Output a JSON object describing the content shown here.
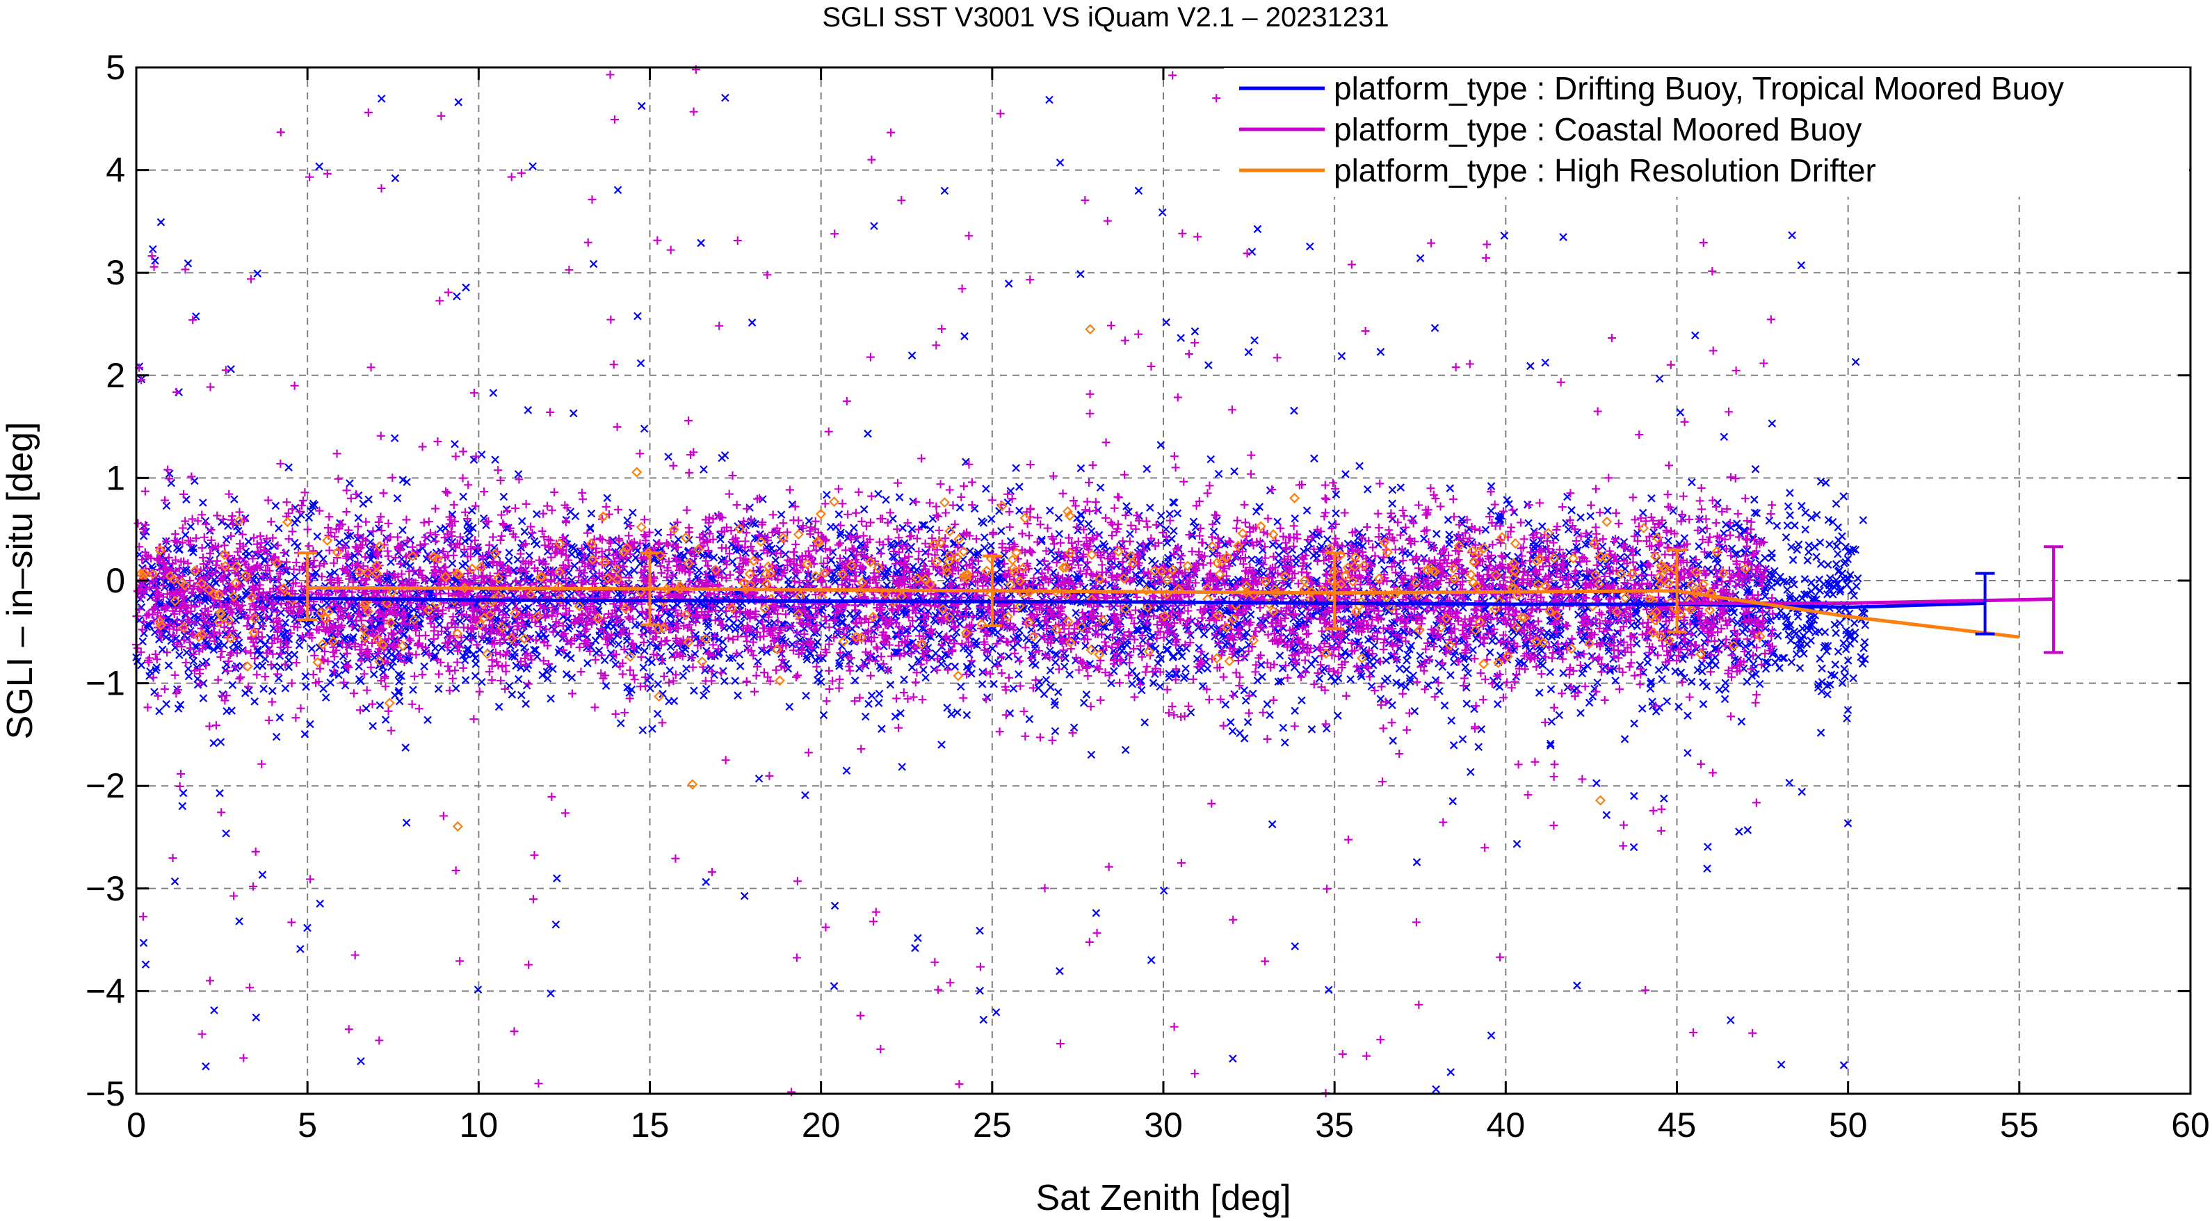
{
  "chart_data": {
    "type": "scatter",
    "title": "SGLI SST V3001 VS iQuam V2.1  – 20231231",
    "xlabel": "Sat Zenith [deg]",
    "ylabel": "SGLI – in–situ [deg]",
    "xlim": [
      0,
      60
    ],
    "ylim": [
      -5,
      5
    ],
    "x_ticks": [
      0,
      5,
      10,
      15,
      20,
      25,
      30,
      35,
      40,
      45,
      50,
      55,
      60
    ],
    "y_ticks": [
      -5,
      -4,
      -3,
      -2,
      -1,
      0,
      1,
      2,
      3,
      4,
      5
    ],
    "x_tick_labels": [
      "0",
      "5",
      "10",
      "15",
      "20",
      "25",
      "30",
      "35",
      "40",
      "45",
      "50",
      "55",
      "60"
    ],
    "y_tick_labels": [
      "−5",
      "−4",
      "−3",
      "−2",
      "−1",
      "0",
      "1",
      "2",
      "3",
      "4",
      "5"
    ],
    "grid": true,
    "legend_position": "top-right",
    "scatter_point_x_range": [
      0,
      50.5
    ],
    "series": [
      {
        "name": "platform_type : Drifting Buoy, Tropical Moored Buoy",
        "color": "#0000ff",
        "marker": "x",
        "bias_x": [
          4,
          10,
          20,
          30,
          40,
          45,
          50,
          54
        ],
        "bias_y": [
          -0.17,
          -0.19,
          -0.2,
          -0.21,
          -0.23,
          -0.23,
          -0.26,
          -0.22
        ],
        "errorbar": {
          "x": 54,
          "y": -0.22,
          "low": -0.52,
          "high": 0.07
        }
      },
      {
        "name": "platform_type : Coastal Moored Buoy",
        "color": "#cc00cc",
        "marker": "+",
        "bias_x": [
          45,
          50,
          56
        ],
        "bias_y": [
          -0.22,
          -0.22,
          -0.18
        ],
        "errorbar": {
          "x": 56,
          "y": -0.18,
          "low": -0.7,
          "high": 0.33
        }
      },
      {
        "name": "platform_type : High Resolution Drifter",
        "color": "#ff7f0e",
        "marker": "diamond",
        "bias_x": [
          5,
          15,
          25,
          35,
          45,
          50,
          55
        ],
        "bias_y": [
          -0.07,
          -0.08,
          -0.1,
          -0.12,
          -0.1,
          -0.35,
          -0.55
        ],
        "errorbars": [
          {
            "x": 5,
            "y": -0.07,
            "low": -0.38,
            "high": 0.27
          },
          {
            "x": 15,
            "y": -0.08,
            "low": -0.43,
            "high": 0.27
          },
          {
            "x": 25,
            "y": -0.1,
            "low": -0.44,
            "high": 0.24
          },
          {
            "x": 35,
            "y": -0.12,
            "low": -0.47,
            "high": 0.27
          },
          {
            "x": 45,
            "y": -0.1,
            "low": -0.5,
            "high": 0.3
          }
        ]
      }
    ]
  }
}
